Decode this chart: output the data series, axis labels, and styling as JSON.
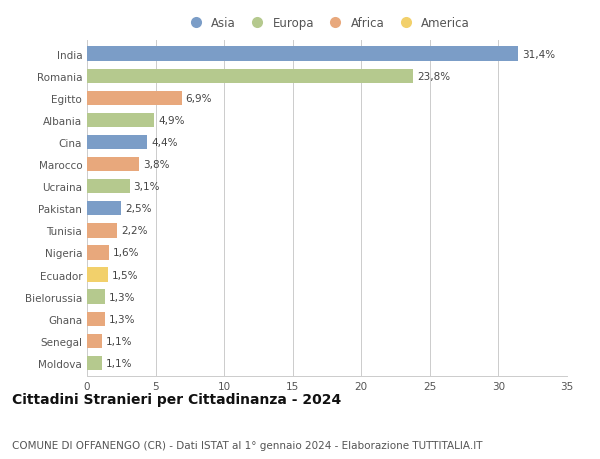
{
  "countries": [
    "India",
    "Romania",
    "Egitto",
    "Albania",
    "Cina",
    "Marocco",
    "Ucraina",
    "Pakistan",
    "Tunisia",
    "Nigeria",
    "Ecuador",
    "Bielorussia",
    "Ghana",
    "Senegal",
    "Moldova"
  ],
  "values": [
    31.4,
    23.8,
    6.9,
    4.9,
    4.4,
    3.8,
    3.1,
    2.5,
    2.2,
    1.6,
    1.5,
    1.3,
    1.3,
    1.1,
    1.1
  ],
  "labels": [
    "31,4%",
    "23,8%",
    "6,9%",
    "4,9%",
    "4,4%",
    "3,8%",
    "3,1%",
    "2,5%",
    "2,2%",
    "1,6%",
    "1,5%",
    "1,3%",
    "1,3%",
    "1,1%",
    "1,1%"
  ],
  "continents": [
    "Asia",
    "Europa",
    "Africa",
    "Europa",
    "Asia",
    "Africa",
    "Europa",
    "Asia",
    "Africa",
    "Africa",
    "America",
    "Europa",
    "Africa",
    "Africa",
    "Europa"
  ],
  "continent_colors": {
    "Asia": "#7b9dc7",
    "Europa": "#b5c98e",
    "Africa": "#e8a87c",
    "America": "#f2d06b"
  },
  "legend_order": [
    "Asia",
    "Europa",
    "Africa",
    "America"
  ],
  "xlim": [
    0,
    35
  ],
  "xticks": [
    0,
    5,
    10,
    15,
    20,
    25,
    30,
    35
  ],
  "title": "Cittadini Stranieri per Cittadinanza - 2024",
  "subtitle": "COMUNE DI OFFANENGO (CR) - Dati ISTAT al 1° gennaio 2024 - Elaborazione TUTTITALIA.IT",
  "bg_color": "#ffffff",
  "grid_color": "#cccccc",
  "bar_height": 0.65,
  "title_fontsize": 10,
  "subtitle_fontsize": 7.5,
  "label_fontsize": 7.5,
  "tick_fontsize": 7.5,
  "legend_fontsize": 8.5
}
